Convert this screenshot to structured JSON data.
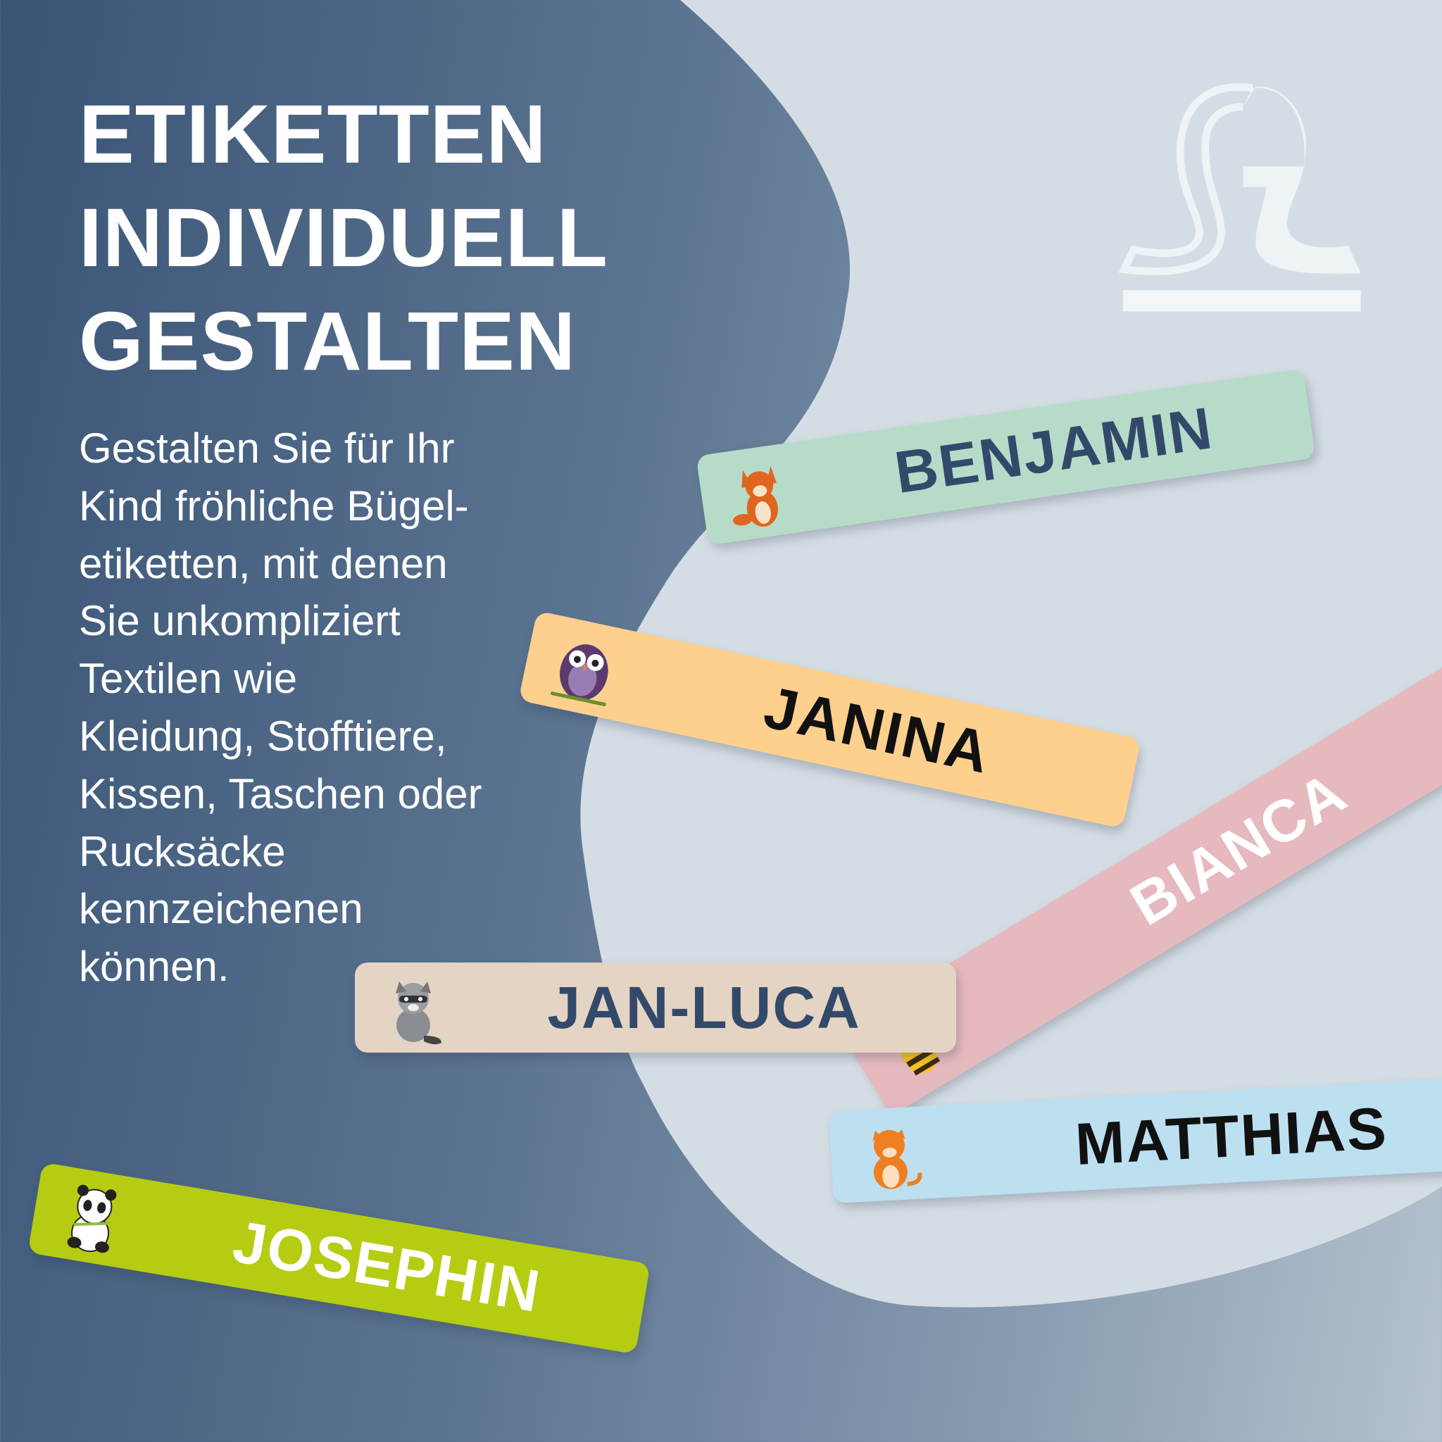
{
  "headline": {
    "lines": [
      "ETIKETTEN",
      "INDIVIDUELL",
      "GESTALTEN"
    ]
  },
  "description": {
    "lines": [
      "Gestalten Sie für Ihr",
      "Kind fröhliche Bügel-",
      "etiketten, mit denen",
      "Sie unkompliziert",
      "Textilen wie",
      "Kleidung, Stofftiere,",
      "Kissen, Taschen oder",
      "Rucksäcke",
      "kennzeichenen",
      "können."
    ]
  },
  "logo": {
    "icon": "stamp-logo-icon"
  },
  "colors": {
    "background_dark": "#3a5476",
    "blob": "#d5dde4",
    "navy_text": "#33496a"
  },
  "labels": [
    {
      "name": "BENJAMIN",
      "animal": "fox",
      "color": "#b6dcc9",
      "text_color": "#33496a"
    },
    {
      "name": "JANINA",
      "animal": "owl",
      "color": "#fdd08e",
      "text_color": "#111111"
    },
    {
      "name": "BIANCA",
      "animal": "bee",
      "color": "#e6b9bf",
      "text_color": "#ffffff"
    },
    {
      "name": "JAN-LUCA",
      "animal": "raccoon",
      "color": "#e4d4c3",
      "text_color": "#33496a"
    },
    {
      "name": "MATTHIAS",
      "animal": "tiger",
      "color": "#bde0f1",
      "text_color": "#111111"
    },
    {
      "name": "JOSEPHIN",
      "animal": "panda",
      "color": "#b5cc12",
      "text_color": "#ffffff"
    }
  ]
}
